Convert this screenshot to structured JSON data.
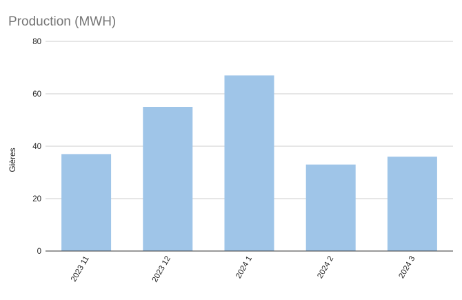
{
  "chart_data": {
    "type": "bar",
    "title": "Production (MWH)",
    "xlabel": "",
    "ylabel": "Gières",
    "categories": [
      "2023 11",
      "2023 12",
      "2024 1",
      "2024 2",
      "2024 3"
    ],
    "series": [
      {
        "values": [
          37,
          55,
          67,
          33,
          36
        ]
      }
    ],
    "ylim": [
      0,
      80
    ],
    "yticks": [
      0,
      20,
      40,
      60,
      80
    ],
    "grid": true,
    "colors": {
      "bar": "#9fc5e8",
      "grid": "#cccccc",
      "axis": "#333333",
      "title": "#757575",
      "text": "#222222"
    }
  }
}
